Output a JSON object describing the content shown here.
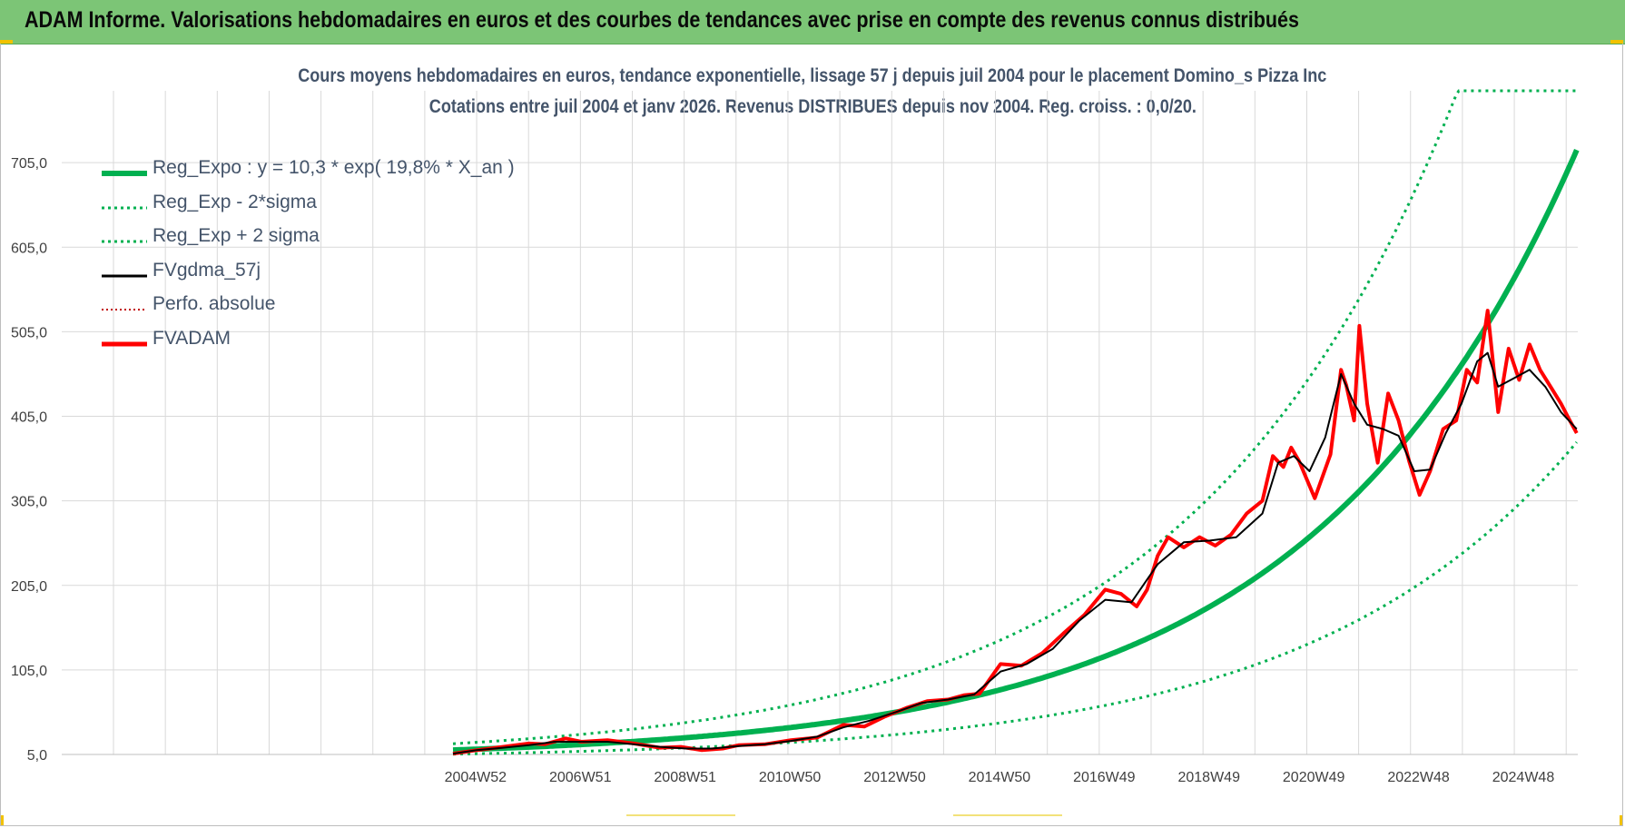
{
  "header": {
    "title": "ADAM Informe. Valorisations hebdomadaires en euros et des courbes de tendances avec prise en compte des revenus connus distribués"
  },
  "colors": {
    "header_bg": "#7cc576",
    "regression": "#00b050",
    "smoothed": "#000000",
    "absolute_perf": "#c00000",
    "fvadam": "#ff0000",
    "title_text": "#44546a",
    "grid": "#d9d9d9"
  },
  "chart_data": {
    "type": "line",
    "title": "Cours moyens hebdomadaires en euros, tendance exponentielle, lissage 57 j depuis juil 2004 pour le placement Domino_s Pizza Inc",
    "subtitle": "Cotations entre juil 2004 et janv 2026. Revenus DISTRIBUES depuis nov 2004. Reg. croiss. : 0,0/20.",
    "xlabel": "",
    "ylabel": "",
    "x_range": [
      "2004W30",
      "2026W02"
    ],
    "x_tick_labels": [
      "2004W52",
      "2006W51",
      "2008W51",
      "2010W50",
      "2012W50",
      "2014W50",
      "2016W49",
      "2018W49",
      "2020W49",
      "2022W48",
      "2024W48"
    ],
    "y_tick_labels": [
      "5,0",
      "105,0",
      "205,0",
      "305,0",
      "405,0",
      "505,0",
      "605,0",
      "705,0"
    ],
    "ylim": [
      5,
      790
    ],
    "grid": true,
    "legend_position": "top-left",
    "legend": [
      "Reg_Expo : y = 10,3 * exp( 19,8% *  X_an )",
      "Reg_Exp - 2*sigma",
      "Reg_Exp + 2 sigma",
      "FVgdma_57j",
      "Perfo. absolue",
      "FVADAM"
    ],
    "regression": {
      "a": 10.3,
      "b": 0.198,
      "lower_factor": 0.52,
      "upper_factor": 1.72,
      "cap": 790
    },
    "series": [
      {
        "name": "FVADAM",
        "x": [
          2004.55,
          2005.0,
          2005.5,
          2006.0,
          2006.3,
          2006.7,
          2007.0,
          2007.5,
          2008.0,
          2008.5,
          2008.9,
          2009.3,
          2009.7,
          2010.0,
          2010.5,
          2011.0,
          2011.5,
          2012.0,
          2012.4,
          2012.8,
          2013.2,
          2013.6,
          2014.0,
          2014.3,
          2014.6,
          2015.0,
          2015.4,
          2015.8,
          2016.2,
          2016.6,
          2017.0,
          2017.3,
          2017.6,
          2017.8,
          2018.0,
          2018.2,
          2018.5,
          2018.8,
          2019.1,
          2019.4,
          2019.7,
          2020.0,
          2020.2,
          2020.4,
          2020.55,
          2020.7,
          2021.0,
          2021.3,
          2021.5,
          2021.6,
          2021.75,
          2021.85,
          2022.0,
          2022.2,
          2022.4,
          2022.6,
          2022.8,
          2023.0,
          2023.2,
          2023.45,
          2023.7,
          2023.9,
          2024.1,
          2024.3,
          2024.5,
          2024.7,
          2024.9,
          2025.1,
          2025.3,
          2025.5,
          2025.7,
          2025.85,
          2026.0
        ],
        "values": [
          6,
          10,
          14,
          18,
          17,
          24,
          20,
          22,
          18,
          13,
          14,
          10,
          12,
          16,
          17,
          22,
          25,
          40,
          38,
          50,
          60,
          68,
          70,
          75,
          77,
          112,
          110,
          125,
          148,
          170,
          200,
          195,
          180,
          200,
          240,
          262,
          250,
          262,
          252,
          265,
          290,
          305,
          358,
          345,
          368,
          352,
          308,
          360,
          460,
          442,
          400,
          512,
          420,
          350,
          432,
          400,
          352,
          312,
          340,
          390,
          400,
          460,
          445,
          530,
          410,
          485,
          448,
          490,
          460,
          440,
          420,
          402,
          385
        ]
      },
      {
        "name": "FVgdma_57j",
        "x": [
          2004.55,
          2005.0,
          2005.5,
          2006.0,
          2006.5,
          2007.0,
          2007.5,
          2008.0,
          2008.5,
          2009.0,
          2009.5,
          2010.0,
          2010.5,
          2011.0,
          2011.5,
          2012.0,
          2012.5,
          2013.0,
          2013.5,
          2014.0,
          2014.5,
          2015.0,
          2015.5,
          2016.0,
          2016.5,
          2017.0,
          2017.5,
          2018.0,
          2018.5,
          2019.0,
          2019.5,
          2020.0,
          2020.3,
          2020.6,
          2020.9,
          2021.2,
          2021.5,
          2021.75,
          2022.0,
          2022.3,
          2022.6,
          2022.9,
          2023.2,
          2023.5,
          2023.8,
          2024.1,
          2024.3,
          2024.5,
          2024.8,
          2025.1,
          2025.4,
          2025.7,
          2026.0
        ],
        "values": [
          6,
          10,
          13,
          16,
          20,
          20,
          20,
          17,
          14,
          12,
          12,
          15,
          17,
          21,
          26,
          37,
          45,
          55,
          66,
          70,
          76,
          103,
          112,
          130,
          163,
          188,
          185,
          230,
          256,
          258,
          262,
          290,
          350,
          358,
          340,
          380,
          455,
          420,
          395,
          390,
          382,
          340,
          342,
          385,
          420,
          470,
          480,
          440,
          450,
          460,
          440,
          410,
          390
        ]
      }
    ]
  }
}
